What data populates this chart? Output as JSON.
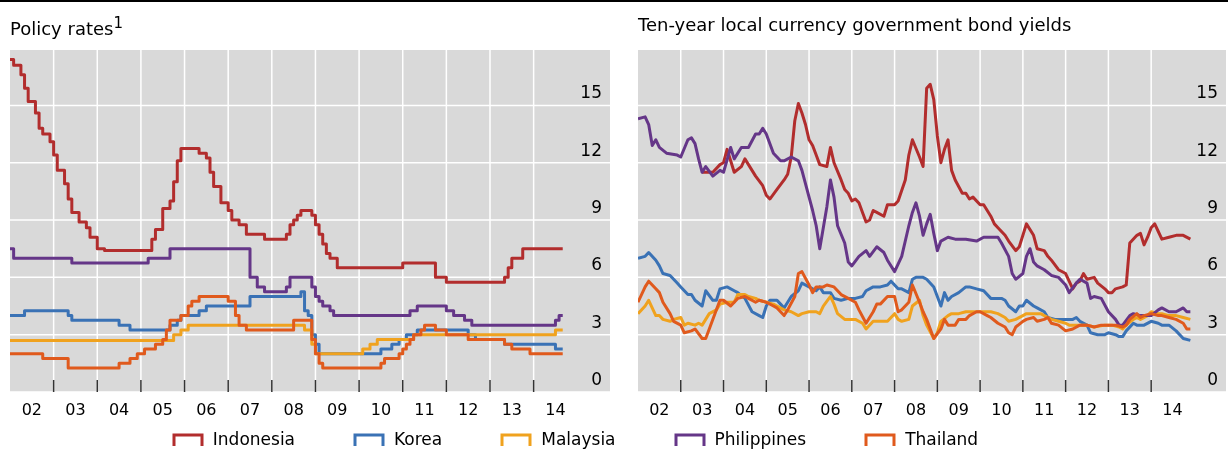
{
  "chart_data": [
    {
      "type": "step",
      "title": "Policy rates$^{1}$",
      "xlim": [
        "2002-01",
        "2015-10"
      ],
      "ylim": [
        0,
        17.9
      ],
      "yticks": [
        0,
        3,
        6,
        9,
        12,
        15
      ],
      "grid": true,
      "legend": "bottom",
      "xticks": [
        {
          "value": "2002-07",
          "label": "02"
        },
        {
          "value": "2003",
          "label": null
        },
        {
          "value": "2003-07",
          "label": "03"
        },
        {
          "value": "2004",
          "label": null
        },
        {
          "value": "2004-07",
          "label": "04"
        },
        {
          "value": "2005",
          "label": null
        },
        {
          "value": "2005-07",
          "label": "05"
        },
        {
          "value": "2006",
          "label": null
        },
        {
          "value": "2006-07",
          "label": "06"
        },
        {
          "value": "2007",
          "label": null
        },
        {
          "value": "2007-07",
          "label": "07"
        },
        {
          "value": "2008",
          "label": null
        },
        {
          "value": "2008-07",
          "label": "08"
        },
        {
          "value": "2009",
          "label": null
        },
        {
          "value": "2009-07",
          "label": "09"
        },
        {
          "value": "2010",
          "label": null
        },
        {
          "value": "2010-07",
          "label": "10"
        },
        {
          "value": "2011",
          "label": null
        },
        {
          "value": "2011-07",
          "label": "11"
        },
        {
          "value": "2012",
          "label": null
        },
        {
          "value": "2012-07",
          "label": "12"
        },
        {
          "value": "2013",
          "label": null
        },
        {
          "value": "2013-07",
          "label": "13"
        },
        {
          "value": "2014",
          "label": null
        },
        {
          "value": "2014-07",
          "label": "14"
        }
      ],
      "series": [
        {
          "name": "Indonesia",
          "color": "#b22d2d",
          "x": [
            "2002-01",
            "2002-02",
            "2002-04",
            "2002-05",
            "2002-06",
            "2002-08",
            "2002-09",
            "2002-10",
            "2002-12",
            "2003-01",
            "2003-02",
            "2003-04",
            "2003-05",
            "2003-06",
            "2003-08",
            "2003-10",
            "2003-11",
            "2004-01",
            "2004-03",
            "2005-04",
            "2005-05",
            "2005-07",
            "2005-09",
            "2005-10",
            "2005-11",
            "2005-12",
            "2006-05",
            "2006-07",
            "2006-08",
            "2006-09",
            "2006-11",
            "2007-01",
            "2007-02",
            "2007-04",
            "2007-06",
            "2007-11",
            "2008-05",
            "2008-06",
            "2008-07",
            "2008-08",
            "2008-09",
            "2008-12",
            "2009-01",
            "2009-02",
            "2009-03",
            "2009-04",
            "2009-05",
            "2009-07",
            "2011-01",
            "2011-10",
            "2012-01",
            "2013-05",
            "2013-06",
            "2013-07",
            "2013-10",
            "2014-09"
          ],
          "values": [
            17.4,
            17.1,
            16.6,
            15.9,
            15.2,
            14.6,
            13.8,
            13.5,
            13.1,
            12.4,
            11.6,
            10.9,
            10.1,
            9.4,
            8.9,
            8.6,
            8.1,
            7.5,
            7.4,
            8.0,
            8.5,
            9.6,
            10.0,
            11.0,
            12.1,
            12.75,
            12.5,
            12.25,
            11.5,
            10.75,
            9.9,
            9.5,
            9.0,
            8.75,
            8.25,
            8.0,
            8.25,
            8.75,
            9.0,
            9.25,
            9.5,
            9.25,
            8.75,
            8.25,
            7.75,
            7.25,
            7.0,
            6.5,
            6.75,
            6.0,
            5.75,
            6.0,
            6.5,
            7.0,
            7.5,
            7.5
          ]
        },
        {
          "name": "Korea",
          "color": "#3a72b5",
          "x": [
            "2002-01",
            "2002-05",
            "2003-05",
            "2003-06",
            "2004-07",
            "2004-10",
            "2005-09",
            "2005-11",
            "2005-12",
            "2006-05",
            "2006-07",
            "2007-07",
            "2008-09",
            "2008-10",
            "2008-11",
            "2008-12",
            "2009-01",
            "2009-02",
            "2010-07",
            "2010-10",
            "2010-12",
            "2011-02",
            "2011-05",
            "2012-07",
            "2012-09",
            "2013-05",
            "2014-07",
            "2014-09"
          ],
          "values": [
            4.0,
            4.25,
            4.0,
            3.75,
            3.5,
            3.25,
            3.5,
            3.75,
            4.0,
            4.25,
            4.5,
            5.0,
            5.25,
            4.25,
            4.0,
            3.0,
            2.5,
            2.0,
            2.25,
            2.5,
            2.75,
            3.0,
            3.25,
            3.0,
            2.75,
            2.5,
            2.25,
            2.25
          ]
        },
        {
          "name": "Malaysia",
          "color": "#f0a21e",
          "x": [
            "2002-01",
            "2005-10",
            "2005-12",
            "2006-02",
            "2008-10",
            "2008-12",
            "2009-01",
            "2010-02",
            "2010-04",
            "2010-06",
            "2011-04",
            "2014-07",
            "2014-09"
          ],
          "values": [
            2.7,
            3.0,
            3.25,
            3.5,
            3.25,
            2.5,
            2.0,
            2.25,
            2.5,
            2.75,
            3.0,
            3.25,
            3.25
          ]
        },
        {
          "name": "Philippines",
          "color": "#653688",
          "x": [
            "2002-01",
            "2002-02",
            "2003-06",
            "2005-03",
            "2005-09",
            "2007-07",
            "2007-09",
            "2007-11",
            "2008-05",
            "2008-06",
            "2008-12",
            "2009-01",
            "2009-02",
            "2009-03",
            "2009-05",
            "2009-06",
            "2011-03",
            "2011-05",
            "2012-01",
            "2012-03",
            "2012-06",
            "2012-08",
            "2014-07",
            "2014-08",
            "2014-09"
          ],
          "values": [
            7.5,
            7.0,
            6.75,
            7.0,
            7.5,
            6.0,
            5.5,
            5.25,
            5.5,
            6.0,
            5.5,
            5.0,
            4.75,
            4.5,
            4.25,
            4.0,
            4.25,
            4.5,
            4.25,
            4.0,
            3.75,
            3.5,
            3.75,
            4.0,
            4.0
          ]
        },
        {
          "name": "Thailand",
          "color": "#e05a1d",
          "x": [
            "2002-01",
            "2002-10",
            "2003-05",
            "2004-07",
            "2004-10",
            "2004-12",
            "2005-02",
            "2005-05",
            "2005-07",
            "2005-08",
            "2005-09",
            "2005-12",
            "2006-02",
            "2006-03",
            "2006-05",
            "2007-01",
            "2007-03",
            "2007-04",
            "2007-06",
            "2008-07",
            "2008-12",
            "2009-01",
            "2009-02",
            "2009-03",
            "2010-07",
            "2010-08",
            "2010-12",
            "2011-01",
            "2011-02",
            "2011-03",
            "2011-04",
            "2011-06",
            "2011-07",
            "2011-10",
            "2012-01",
            "2012-07",
            "2013-05",
            "2013-07",
            "2013-12",
            "2014-09"
          ],
          "values": [
            2.0,
            1.75,
            1.25,
            1.5,
            1.75,
            2.0,
            2.25,
            2.5,
            2.75,
            3.25,
            3.75,
            4.0,
            4.5,
            4.75,
            5.0,
            4.75,
            4.0,
            3.5,
            3.25,
            3.75,
            2.75,
            2.0,
            1.5,
            1.25,
            1.5,
            1.75,
            2.0,
            2.25,
            2.5,
            2.75,
            3.0,
            3.25,
            3.5,
            3.25,
            3.0,
            2.75,
            2.5,
            2.25,
            2.0,
            2.0
          ]
        }
      ]
    },
    {
      "type": "line",
      "title": "Ten-year local currency government bond yields",
      "xlim": [
        "2002-01",
        "2015-10"
      ],
      "ylim": [
        0,
        17.9
      ],
      "yticks": [
        0,
        3,
        6,
        9,
        12,
        15
      ],
      "grid": true,
      "legend": "bottom",
      "xticks": [
        {
          "value": "2002-07",
          "label": "02"
        },
        {
          "value": "2003",
          "label": null
        },
        {
          "value": "2003-07",
          "label": "03"
        },
        {
          "value": "2004",
          "label": null
        },
        {
          "value": "2004-07",
          "label": "04"
        },
        {
          "value": "2005",
          "label": null
        },
        {
          "value": "2005-07",
          "label": "05"
        },
        {
          "value": "2006",
          "label": null
        },
        {
          "value": "2006-07",
          "label": "06"
        },
        {
          "value": "2007",
          "label": null
        },
        {
          "value": "2007-07",
          "label": "07"
        },
        {
          "value": "2008",
          "label": null
        },
        {
          "value": "2008-07",
          "label": "08"
        },
        {
          "value": "2009",
          "label": null
        },
        {
          "value": "2009-07",
          "label": "09"
        },
        {
          "value": "2010",
          "label": null
        },
        {
          "value": "2010-07",
          "label": "10"
        },
        {
          "value": "2011",
          "label": null
        },
        {
          "value": "2011-07",
          "label": "11"
        },
        {
          "value": "2012",
          "label": null
        },
        {
          "value": "2012-07",
          "label": "12"
        },
        {
          "value": "2013",
          "label": null
        },
        {
          "value": "2013-07",
          "label": "13"
        },
        {
          "value": "2014",
          "label": null
        },
        {
          "value": "2014-07",
          "label": "14"
        }
      ],
      "series": [
        {
          "name": "Indonesia",
          "color": "#b22d2d",
          "x": [
            "2003-07",
            "2003-10",
            "2003-12",
            "2004-01",
            "2004-02",
            "2004-03",
            "2004-04",
            "2004-06",
            "2004-07",
            "2004-08",
            "2004-10",
            "2004-12",
            "2005-01",
            "2005-02",
            "2005-04",
            "2005-06",
            "2005-07",
            "2005-08",
            "2005-09",
            "2005-10",
            "2005-11",
            "2005-12",
            "2006-01",
            "2006-02",
            "2006-03",
            "2006-04",
            "2006-06",
            "2006-07",
            "2006-08",
            "2006-10",
            "2006-11",
            "2006-12",
            "2007-01",
            "2007-02",
            "2007-03",
            "2007-04",
            "2007-05",
            "2007-06",
            "2007-07",
            "2007-08",
            "2007-10",
            "2007-11",
            "2008-01",
            "2008-02",
            "2008-04",
            "2008-05",
            "2008-06",
            "2008-08",
            "2008-09",
            "2008-10",
            "2008-11",
            "2008-12",
            "2009-01",
            "2009-02",
            "2009-03",
            "2009-04",
            "2009-05",
            "2009-06",
            "2009-08",
            "2009-09",
            "2009-10",
            "2009-11",
            "2010-01",
            "2010-02",
            "2010-04",
            "2010-05",
            "2010-06",
            "2010-08",
            "2010-09",
            "2010-11",
            "2010-12",
            "2011-02",
            "2011-04",
            "2011-05",
            "2011-07",
            "2011-08",
            "2011-09",
            "2011-11",
            "2012-01",
            "2012-03",
            "2012-04",
            "2012-05",
            "2012-06",
            "2012-07",
            "2012-09",
            "2012-10",
            "2012-12",
            "2013-01",
            "2013-02",
            "2013-03",
            "2013-05",
            "2013-06",
            "2013-07",
            "2013-09",
            "2013-10",
            "2013-11",
            "2013-12",
            "2014-01",
            "2014-02",
            "2014-03",
            "2014-04",
            "2014-06",
            "2014-08",
            "2014-10",
            "2014-12"
          ],
          "values": [
            11.5,
            11.5,
            11.9,
            12.0,
            12.7,
            12.1,
            11.5,
            11.8,
            12.2,
            11.9,
            11.3,
            10.8,
            10.3,
            10.1,
            10.6,
            11.1,
            11.4,
            12.3,
            14.2,
            15.1,
            14.6,
            14.0,
            13.2,
            12.9,
            12.4,
            11.9,
            11.8,
            12.8,
            12.0,
            11.1,
            10.6,
            10.4,
            10.0,
            10.1,
            9.9,
            9.4,
            8.9,
            9.0,
            9.5,
            9.4,
            9.2,
            9.8,
            9.8,
            10.0,
            11.1,
            12.4,
            13.2,
            12.3,
            11.8,
            15.9,
            16.1,
            15.3,
            13.4,
            12.0,
            12.7,
            13.2,
            11.6,
            11.1,
            10.4,
            10.4,
            10.1,
            10.2,
            9.8,
            9.8,
            9.2,
            8.8,
            8.6,
            8.2,
            7.9,
            7.4,
            7.6,
            8.8,
            8.2,
            7.5,
            7.4,
            7.1,
            6.9,
            6.4,
            6.2,
            5.4,
            5.7,
            5.8,
            6.2,
            5.9,
            6.0,
            5.7,
            5.4,
            5.2,
            5.2,
            5.4,
            5.5,
            5.6,
            7.8,
            8.2,
            8.3,
            7.7,
            8.1,
            8.6,
            8.8,
            8.4,
            8.0,
            8.1,
            8.2,
            8.2,
            8.0
          ]
        },
        {
          "name": "Korea",
          "color": "#3a72b5",
          "x": [
            "2002-01",
            "2002-03",
            "2002-04",
            "2002-06",
            "2002-07",
            "2002-08",
            "2002-10",
            "2002-12",
            "2003-01",
            "2003-03",
            "2003-04",
            "2003-05",
            "2003-07",
            "2003-08",
            "2003-10",
            "2003-11",
            "2003-12",
            "2004-02",
            "2004-04",
            "2004-05",
            "2004-07",
            "2004-09",
            "2004-11",
            "2004-12",
            "2005-01",
            "2005-02",
            "2005-04",
            "2005-05",
            "2005-06",
            "2005-08",
            "2005-10",
            "2005-11",
            "2006-01",
            "2006-03",
            "2006-04",
            "2006-05",
            "2006-07",
            "2006-08",
            "2006-10",
            "2006-12",
            "2007-02",
            "2007-04",
            "2007-05",
            "2007-07",
            "2007-09",
            "2007-11",
            "2007-12",
            "2008-02",
            "2008-03",
            "2008-05",
            "2008-06",
            "2008-07",
            "2008-09",
            "2008-10",
            "2008-12",
            "2009-01",
            "2009-02",
            "2009-03",
            "2009-04",
            "2009-05",
            "2009-07",
            "2009-09",
            "2009-10",
            "2009-12",
            "2010-02",
            "2010-04",
            "2010-07",
            "2010-08",
            "2010-09",
            "2010-11",
            "2010-12",
            "2011-01",
            "2011-02",
            "2011-04",
            "2011-05",
            "2011-07",
            "2011-08",
            "2011-10",
            "2012-01",
            "2012-03",
            "2012-04",
            "2012-05",
            "2012-07",
            "2012-08",
            "2012-10",
            "2012-12",
            "2013-01",
            "2013-03",
            "2013-04",
            "2013-05",
            "2013-06",
            "2013-08",
            "2013-09",
            "2013-11",
            "2014-01",
            "2014-03",
            "2014-04",
            "2014-06",
            "2014-08",
            "2014-10",
            "2014-12"
          ],
          "values": [
            7.0,
            7.1,
            7.3,
            6.9,
            6.6,
            6.2,
            6.1,
            5.7,
            5.5,
            5.1,
            5.1,
            4.8,
            4.5,
            5.3,
            4.8,
            4.8,
            5.4,
            5.5,
            5.3,
            5.2,
            4.9,
            4.2,
            4.0,
            3.9,
            4.5,
            4.8,
            4.8,
            4.6,
            4.4,
            5.0,
            5.3,
            5.7,
            5.5,
            5.3,
            5.5,
            5.2,
            5.2,
            4.9,
            4.8,
            4.9,
            4.9,
            5.0,
            5.3,
            5.5,
            5.5,
            5.6,
            5.8,
            5.4,
            5.4,
            5.2,
            5.9,
            6.0,
            6.0,
            5.9,
            5.5,
            5.0,
            4.5,
            5.2,
            4.8,
            5.0,
            5.2,
            5.5,
            5.5,
            5.4,
            5.3,
            4.9,
            4.9,
            4.8,
            4.5,
            4.2,
            4.5,
            4.5,
            4.8,
            4.5,
            4.4,
            4.2,
            3.9,
            3.8,
            3.8,
            3.8,
            3.9,
            3.7,
            3.5,
            3.1,
            3.0,
            3.0,
            3.1,
            3.0,
            2.9,
            2.9,
            3.2,
            3.6,
            3.5,
            3.5,
            3.7,
            3.6,
            3.5,
            3.5,
            3.2,
            2.8,
            2.7
          ]
        },
        {
          "name": "Malaysia",
          "color": "#f0a21e",
          "x": [
            "2002-01",
            "2002-03",
            "2002-04",
            "2002-06",
            "2002-07",
            "2002-08",
            "2002-10",
            "2002-11",
            "2003-01",
            "2003-02",
            "2003-03",
            "2003-05",
            "2003-06",
            "2003-07",
            "2003-09",
            "2003-11",
            "2003-12",
            "2004-02",
            "2004-04",
            "2004-05",
            "2004-07",
            "2004-08",
            "2004-10",
            "2004-11",
            "2005-01",
            "2005-03",
            "2005-04",
            "2005-06",
            "2005-08",
            "2005-10",
            "2005-11",
            "2006-01",
            "2006-03",
            "2006-04",
            "2006-05",
            "2006-07",
            "2006-08",
            "2006-09",
            "2006-11",
            "2007-01",
            "2007-02",
            "2007-04",
            "2007-05",
            "2007-07",
            "2007-09",
            "2007-11",
            "2008-01",
            "2008-02",
            "2008-03",
            "2008-05",
            "2008-06",
            "2008-08",
            "2008-09",
            "2008-10",
            "2008-12",
            "2009-01",
            "2009-02",
            "2009-04",
            "2009-05",
            "2009-07",
            "2009-09",
            "2009-12",
            "2010-02",
            "2010-04",
            "2010-06",
            "2010-08",
            "2010-09",
            "2010-11",
            "2011-01",
            "2011-02",
            "2011-06",
            "2011-07",
            "2011-09",
            "2011-11",
            "2012-01",
            "2012-02",
            "2012-04",
            "2012-06",
            "2012-07",
            "2012-09",
            "2012-12",
            "2013-02",
            "2013-04",
            "2013-05",
            "2013-06",
            "2013-08",
            "2013-09",
            "2013-10",
            "2013-12",
            "2014-01",
            "2014-03",
            "2014-04",
            "2014-06",
            "2014-08",
            "2014-10",
            "2014-12"
          ],
          "values": [
            4.1,
            4.5,
            4.8,
            4.0,
            4.0,
            3.8,
            3.7,
            3.8,
            3.9,
            3.5,
            3.6,
            3.5,
            3.6,
            3.5,
            4.1,
            4.3,
            4.6,
            4.7,
            4.7,
            5.1,
            5.1,
            5.0,
            4.9,
            4.8,
            4.7,
            4.6,
            4.5,
            4.3,
            4.2,
            4.0,
            4.1,
            4.2,
            4.2,
            4.1,
            4.5,
            5.0,
            4.6,
            4.1,
            3.8,
            3.8,
            3.8,
            3.6,
            3.3,
            3.7,
            3.7,
            3.7,
            4.1,
            3.8,
            3.7,
            3.8,
            4.5,
            4.8,
            4.0,
            3.5,
            2.8,
            3.1,
            3.7,
            4.0,
            4.1,
            4.1,
            4.2,
            4.2,
            4.2,
            4.2,
            4.1,
            3.9,
            3.7,
            3.8,
            4.0,
            4.1,
            4.1,
            4.0,
            3.8,
            3.7,
            3.6,
            3.5,
            3.5,
            3.5,
            3.5,
            3.4,
            3.5,
            3.5,
            3.4,
            3.3,
            3.5,
            3.8,
            3.9,
            3.8,
            4.0,
            4.2,
            4.1,
            4.1,
            4.0,
            4.0,
            3.9,
            3.8
          ]
        },
        {
          "name": "Philippines",
          "color": "#653688",
          "x": [
            "2002-01",
            "2002-03",
            "2002-04",
            "2002-05",
            "2002-06",
            "2002-07",
            "2002-09",
            "2002-12",
            "2003-01",
            "2003-03",
            "2003-04",
            "2003-05",
            "2003-06",
            "2003-07",
            "2003-08",
            "2003-10",
            "2003-12",
            "2004-01",
            "2004-03",
            "2004-04",
            "2004-06",
            "2004-08",
            "2004-10",
            "2004-11",
            "2004-12",
            "2005-01",
            "2005-03",
            "2005-05",
            "2005-06",
            "2005-08",
            "2005-10",
            "2005-11",
            "2006-01",
            "2006-02",
            "2006-03",
            "2006-04",
            "2006-06",
            "2006-07",
            "2006-08",
            "2006-09",
            "2006-11",
            "2006-12",
            "2007-01",
            "2007-03",
            "2007-05",
            "2007-06",
            "2007-08",
            "2007-10",
            "2007-11",
            "2008-01",
            "2008-03",
            "2008-05",
            "2008-06",
            "2008-07",
            "2008-08",
            "2008-09",
            "2008-10",
            "2008-11",
            "2008-12",
            "2009-01",
            "2009-02",
            "2009-04",
            "2009-06",
            "2009-09",
            "2009-12",
            "2010-02",
            "2010-06",
            "2010-07",
            "2010-09",
            "2010-10",
            "2010-11",
            "2011-01",
            "2011-02",
            "2011-03",
            "2011-04",
            "2011-05",
            "2011-07",
            "2011-09",
            "2011-11",
            "2012-01",
            "2012-02",
            "2012-04",
            "2012-05",
            "2012-07",
            "2012-08",
            "2012-09",
            "2012-11",
            "2013-01",
            "2013-03",
            "2013-04",
            "2013-05",
            "2013-07",
            "2013-08",
            "2013-10",
            "2014-01",
            "2014-03",
            "2014-04",
            "2014-06",
            "2014-08",
            "2014-10",
            "2014-11",
            "2014-12"
          ],
          "values": [
            14.3,
            14.4,
            14.0,
            12.9,
            13.2,
            12.8,
            12.5,
            12.4,
            12.3,
            13.2,
            13.3,
            13.0,
            12.2,
            11.5,
            11.8,
            11.3,
            11.6,
            11.5,
            12.8,
            12.2,
            12.8,
            12.8,
            13.5,
            13.5,
            13.8,
            13.5,
            12.5,
            12.1,
            12.1,
            12.3,
            12.1,
            11.6,
            10.2,
            9.5,
            8.7,
            7.5,
            9.7,
            11.1,
            10.2,
            8.7,
            7.8,
            6.8,
            6.6,
            7.1,
            7.4,
            7.1,
            7.6,
            7.3,
            6.9,
            6.3,
            7.1,
            8.7,
            9.4,
            9.9,
            9.2,
            8.2,
            8.8,
            9.3,
            8.3,
            7.4,
            7.9,
            8.1,
            8.0,
            8.0,
            7.9,
            8.1,
            8.1,
            7.8,
            7.1,
            6.2,
            5.9,
            6.2,
            7.1,
            7.5,
            6.8,
            6.6,
            6.4,
            6.1,
            6.0,
            5.6,
            5.2,
            5.7,
            5.9,
            5.7,
            4.9,
            5.0,
            4.9,
            4.2,
            3.8,
            3.5,
            3.5,
            4.0,
            4.1,
            4.0,
            4.0,
            4.3,
            4.4,
            4.2,
            4.2,
            4.4,
            4.2,
            4.2
          ]
        },
        {
          "name": "Thailand",
          "color": "#e05a1d",
          "x": [
            "2002-01",
            "2002-03",
            "2002-04",
            "2002-06",
            "2002-07",
            "2002-08",
            "2002-10",
            "2002-11",
            "2003-01",
            "2003-02",
            "2003-04",
            "2003-05",
            "2003-07",
            "2003-08",
            "2003-09",
            "2003-11",
            "2003-12",
            "2004-01",
            "2004-03",
            "2004-04",
            "2004-05",
            "2004-07",
            "2004-08",
            "2004-10",
            "2004-11",
            "2005-01",
            "2005-03",
            "2005-04",
            "2005-06",
            "2005-07",
            "2005-09",
            "2005-10",
            "2005-11",
            "2006-01",
            "2006-02",
            "2006-03",
            "2006-05",
            "2006-06",
            "2006-08",
            "2006-09",
            "2006-10",
            "2006-12",
            "2007-02",
            "2007-03",
            "2007-05",
            "2007-07",
            "2007-08",
            "2007-09",
            "2007-11",
            "2008-01",
            "2008-02",
            "2008-03",
            "2008-05",
            "2008-06",
            "2008-08",
            "2008-09",
            "2008-10",
            "2008-12",
            "2009-02",
            "2009-03",
            "2009-04",
            "2009-06",
            "2009-07",
            "2009-09",
            "2009-10",
            "2009-12",
            "2010-01",
            "2010-03",
            "2010-04",
            "2010-06",
            "2010-08",
            "2010-09",
            "2010-10",
            "2010-11",
            "2011-01",
            "2011-02",
            "2011-04",
            "2011-05",
            "2011-07",
            "2011-08",
            "2011-09",
            "2011-11",
            "2012-01",
            "2012-03",
            "2012-05",
            "2012-06",
            "2012-07",
            "2012-09",
            "2012-11",
            "2013-01",
            "2013-03",
            "2013-05",
            "2013-06",
            "2013-07",
            "2013-09",
            "2013-10",
            "2013-11",
            "2014-01",
            "2014-03",
            "2014-04",
            "2014-06",
            "2014-08",
            "2014-10",
            "2014-11",
            "2014-12"
          ],
          "values": [
            4.7,
            5.5,
            5.8,
            5.4,
            5.2,
            4.7,
            4.1,
            3.7,
            3.5,
            3.1,
            3.2,
            3.3,
            2.8,
            2.8,
            3.3,
            4.3,
            4.8,
            4.8,
            4.5,
            4.7,
            4.9,
            5.0,
            4.9,
            4.7,
            4.8,
            4.7,
            4.5,
            4.4,
            4.0,
            4.3,
            5.0,
            6.2,
            6.3,
            5.6,
            5.2,
            5.5,
            5.5,
            5.6,
            5.5,
            5.3,
            5.1,
            4.9,
            4.7,
            4.3,
            3.6,
            4.2,
            4.6,
            4.6,
            5.0,
            5.0,
            4.2,
            4.3,
            4.7,
            5.6,
            4.7,
            4.2,
            3.8,
            2.8,
            3.3,
            3.8,
            3.5,
            3.5,
            3.8,
            3.8,
            4.0,
            4.2,
            4.2,
            4.0,
            3.9,
            3.6,
            3.4,
            3.1,
            3.0,
            3.4,
            3.7,
            3.8,
            3.9,
            3.7,
            3.8,
            3.9,
            3.6,
            3.5,
            3.2,
            3.3,
            3.5,
            3.5,
            3.5,
            3.4,
            3.5,
            3.5,
            3.5,
            3.4,
            3.5,
            3.8,
            4.1,
            3.9,
            4.0,
            4.1,
            4.0,
            4.0,
            3.9,
            3.8,
            3.6,
            3.3,
            3.3
          ]
        }
      ]
    }
  ]
}
